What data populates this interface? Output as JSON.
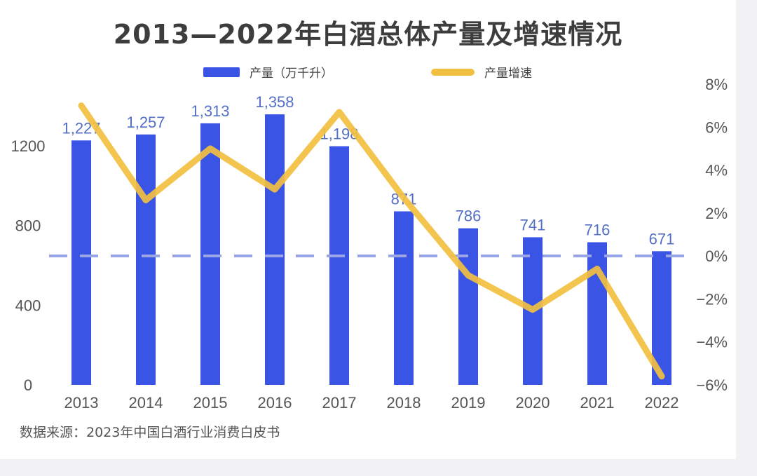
{
  "chart_data": {
    "type": "bar+line",
    "title": "2013—2022年白酒总体产量及增速情况",
    "categories": [
      "2013",
      "2014",
      "2015",
      "2016",
      "2017",
      "2018",
      "2019",
      "2020",
      "2021",
      "2022"
    ],
    "series": [
      {
        "name": "产量（万千升）",
        "type": "bar",
        "axis": "left",
        "values": [
          1227,
          1257,
          1313,
          1358,
          1198,
          871,
          786,
          741,
          716,
          671
        ],
        "labels": [
          "1,227",
          "1,257",
          "1,313",
          "1,358",
          "1,198",
          "871",
          "786",
          "741",
          "716",
          "671"
        ]
      },
      {
        "name": "产量增速",
        "type": "line",
        "axis": "right",
        "values": [
          7.0,
          2.6,
          5.0,
          3.1,
          6.7,
          2.7,
          -0.9,
          -2.5,
          -0.6,
          -5.6
        ]
      }
    ],
    "y_left": {
      "min": 0,
      "max": 1400,
      "ticks": [
        "0",
        "400",
        "800",
        "1200"
      ],
      "tick_values": [
        0,
        400,
        800,
        1200
      ]
    },
    "y_right": {
      "min": -6,
      "max": 8,
      "ticks": [
        "8%",
        "6%",
        "4%",
        "2%",
        "0%",
        "−2%",
        "−4%",
        "−6%"
      ],
      "tick_values": [
        8,
        6,
        4,
        2,
        0,
        -2,
        -4,
        -6
      ]
    },
    "zero_line_label": "0%",
    "legend_position": "top"
  },
  "source": "数据来源：2023年中国白酒行业消费白皮书",
  "colors": {
    "bar": "#3a55e6",
    "line": "#f2c040",
    "zero_line": "#9aa5e8",
    "bar_label": "#5470c6",
    "axis_text": "#555555"
  }
}
